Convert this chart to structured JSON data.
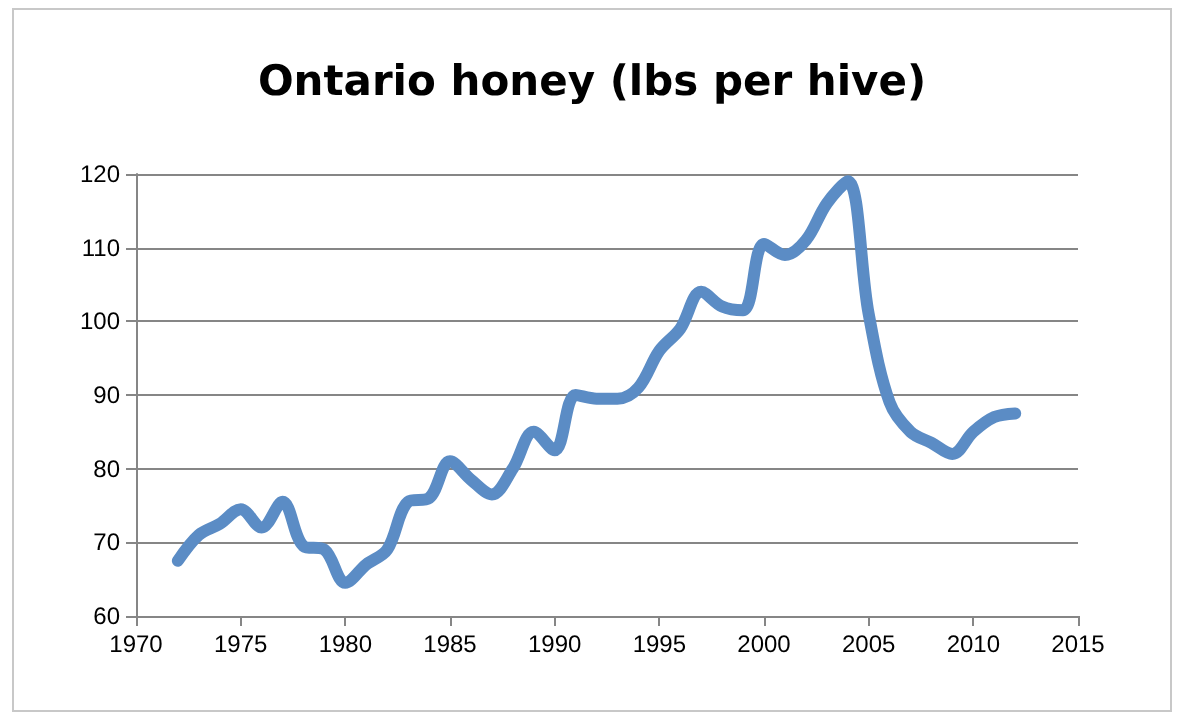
{
  "chart_data": {
    "type": "line",
    "title": "Ontario honey (lbs per hive)",
    "x": [
      1972,
      1973,
      1974,
      1975,
      1976,
      1977,
      1978,
      1979,
      1980,
      1981,
      1982,
      1983,
      1984,
      1985,
      1986,
      1987,
      1988,
      1989,
      1990,
      1991,
      1992,
      1993,
      1994,
      1995,
      1996,
      1997,
      1998,
      1999,
      2000,
      2001,
      2002,
      2003,
      2004,
      2005,
      2006,
      2007,
      2008,
      2009,
      2010,
      2011,
      2012
    ],
    "series": [
      {
        "color": "#5b8cc5",
        "values": [
          67.5,
          71,
          72.5,
          74.5,
          72,
          75.5,
          69.5,
          69,
          64.5,
          67,
          69,
          75.5,
          76,
          81,
          78.5,
          76.5,
          80,
          85,
          82.5,
          90,
          89.5,
          89.5,
          91,
          96,
          99,
          104,
          102,
          101.5,
          110.5,
          109,
          111,
          116,
          119,
          101,
          89,
          85,
          83.5,
          82,
          85,
          87,
          87.5
        ]
      }
    ],
    "xlim": [
      1970,
      2015
    ],
    "xticks": [
      1970,
      1975,
      1980,
      1985,
      1990,
      1995,
      2000,
      2005,
      2010,
      2015
    ],
    "ylim": [
      60,
      120
    ],
    "yticks": [
      60,
      70,
      80,
      90,
      100,
      110,
      120
    ],
    "grid": "y",
    "marker": "none",
    "line_style": "solid"
  }
}
